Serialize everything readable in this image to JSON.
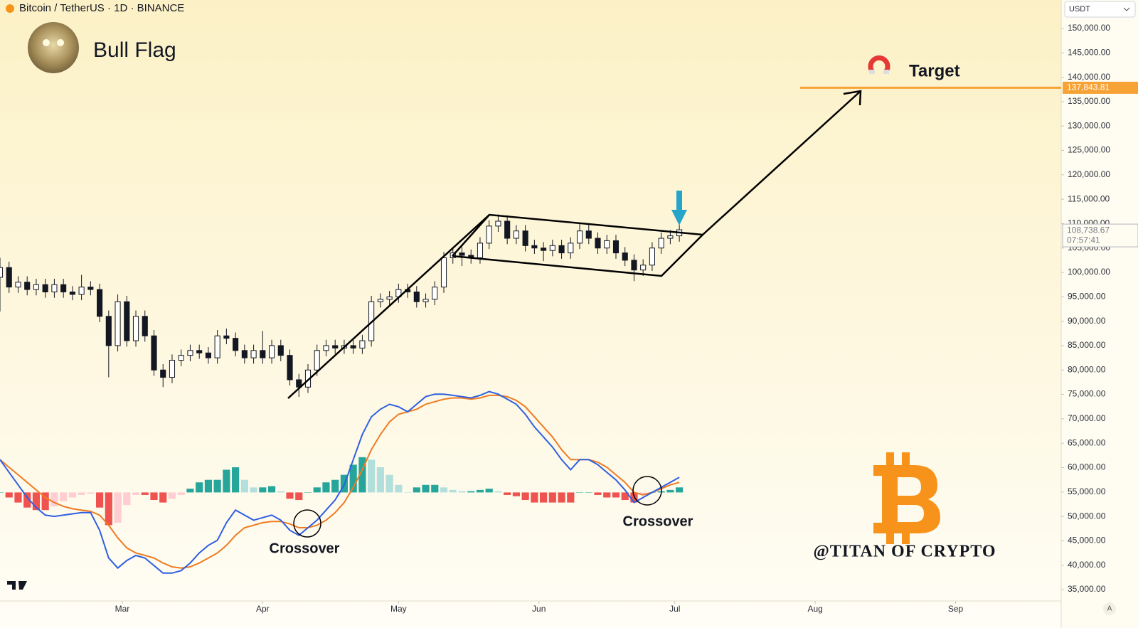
{
  "chart_data": {
    "type": "candlestick",
    "title": "Bitcoin / TetherUS · 1D · BINANCE",
    "pattern_label": "Bull Flag",
    "currency": "USDT",
    "scale_mode": "A",
    "x": [
      0,
      2,
      4,
      6,
      8,
      10,
      12,
      14,
      16,
      18,
      20,
      22,
      24,
      26,
      28,
      30,
      32,
      34,
      36,
      38,
      40,
      42,
      44,
      46,
      48,
      50,
      52,
      54,
      56,
      58,
      60,
      62,
      64,
      66,
      68,
      70,
      72,
      74,
      76,
      78,
      80,
      82,
      84,
      86,
      88,
      90,
      92,
      94,
      96,
      98,
      100,
      102,
      104,
      106,
      108,
      110,
      112,
      114,
      116,
      118,
      120,
      122,
      124,
      126,
      128,
      130,
      132,
      134,
      136,
      138,
      140,
      142,
      144,
      146,
      148,
      150
    ],
    "open": [
      99000,
      101000,
      97000,
      98000,
      96500,
      97500,
      96000,
      97500,
      96000,
      95500,
      97000,
      96500,
      91000,
      85000,
      94000,
      86000,
      91000,
      87000,
      80000,
      78500,
      82000,
      83000,
      84000,
      83500,
      82500,
      87000,
      86500,
      84000,
      82500,
      84000,
      82500,
      85000,
      83000,
      78000,
      76500,
      80000,
      84000,
      85000,
      84500,
      85000,
      84500,
      86000,
      94000,
      94500,
      95000,
      96500,
      96000,
      94000,
      94500,
      97000,
      103000,
      104000,
      103500,
      103000,
      106000,
      109500,
      110500,
      107000,
      108500,
      105500,
      105000,
      104500,
      105500,
      104000,
      106000,
      108500,
      107000,
      105000,
      106500,
      104000,
      102500,
      100500,
      101500,
      105000,
      107000,
      107500
    ],
    "high": [
      103000,
      102200,
      99200,
      99200,
      98700,
      98700,
      98700,
      98700,
      97200,
      99500,
      98200,
      97700,
      92200,
      95500,
      95200,
      92200,
      92200,
      88200,
      81200,
      83200,
      84200,
      85200,
      85200,
      84700,
      88200,
      88500,
      87700,
      85200,
      85200,
      88000,
      86200,
      86200,
      84200,
      79200,
      81200,
      85200,
      86200,
      86200,
      86200,
      86200,
      87200,
      95200,
      95700,
      96200,
      97700,
      97700,
      97200,
      95700,
      98200,
      104200,
      105200,
      105200,
      104700,
      107200,
      110700,
      111900,
      111700,
      109700,
      109700,
      106700,
      106200,
      106700,
      106700,
      107200,
      110200,
      110000,
      108200,
      107700,
      107700,
      105200,
      103700,
      102700,
      106200,
      108200,
      108700,
      109900
    ],
    "low": [
      92000,
      95800,
      95800,
      95300,
      95300,
      94800,
      94800,
      94800,
      94300,
      94300,
      95300,
      89800,
      78500,
      83800,
      84800,
      84800,
      85800,
      78800,
      76500,
      77300,
      80800,
      81800,
      82300,
      81300,
      81300,
      85300,
      82800,
      81300,
      81300,
      81300,
      81300,
      81800,
      76800,
      74500,
      75300,
      78800,
      82800,
      83300,
      83300,
      83300,
      83300,
      84800,
      92800,
      93300,
      93800,
      94800,
      92800,
      92800,
      93300,
      95800,
      101800,
      101300,
      101800,
      101800,
      104800,
      108300,
      105800,
      105800,
      104300,
      103800,
      102300,
      103300,
      102800,
      102800,
      104800,
      105800,
      103800,
      103800,
      102800,
      101300,
      98200,
      99300,
      100300,
      103800,
      105800,
      106300
    ],
    "close": [
      101000,
      97000,
      98000,
      96500,
      97500,
      96000,
      97500,
      96000,
      95500,
      97000,
      96500,
      91000,
      85000,
      94000,
      86000,
      91000,
      87000,
      80000,
      78500,
      82000,
      83000,
      84000,
      83500,
      82500,
      87000,
      86500,
      84000,
      82500,
      84000,
      82500,
      85000,
      83000,
      78000,
      76500,
      80000,
      84000,
      85000,
      84500,
      85000,
      84500,
      86000,
      94000,
      94500,
      95000,
      96500,
      96000,
      94000,
      94500,
      97000,
      103000,
      104000,
      103500,
      103000,
      106000,
      109500,
      110500,
      107000,
      108500,
      105500,
      105000,
      104500,
      105500,
      104000,
      106000,
      108500,
      107000,
      105000,
      106500,
      104000,
      102500,
      100500,
      101500,
      105000,
      107000,
      107500,
      108738.67
    ],
    "up_color": "#ffffff",
    "down_color": "#131722",
    "xlim": [
      0,
      234
    ],
    "xticks": [
      {
        "value": 27,
        "label": "Mar"
      },
      {
        "value": 58,
        "label": "Apr"
      },
      {
        "value": 88,
        "label": "May"
      },
      {
        "value": 119,
        "label": "Jun"
      },
      {
        "value": 149,
        "label": "Jul"
      },
      {
        "value": 180,
        "label": "Aug"
      },
      {
        "value": 211,
        "label": "Sep"
      }
    ],
    "ylim": [
      32960,
      155830
    ],
    "yticks": [
      {
        "value": 35000,
        "label": "35,000.00"
      },
      {
        "value": 40000,
        "label": "40,000.00"
      },
      {
        "value": 45000,
        "label": "45,000.00"
      },
      {
        "value": 50000,
        "label": "50,000.00"
      },
      {
        "value": 55000,
        "label": "55,000.00"
      },
      {
        "value": 60000,
        "label": "60,000.00"
      },
      {
        "value": 65000,
        "label": "65,000.00"
      },
      {
        "value": 70000,
        "label": "70,000.00"
      },
      {
        "value": 75000,
        "label": "75,000.00"
      },
      {
        "value": 80000,
        "label": "80,000.00"
      },
      {
        "value": 85000,
        "label": "85,000.00"
      },
      {
        "value": 90000,
        "label": "90,000.00"
      },
      {
        "value": 95000,
        "label": "95,000.00"
      },
      {
        "value": 100000,
        "label": "100,000.00"
      },
      {
        "value": 105000,
        "label": "105,000.00"
      },
      {
        "value": 110000,
        "label": "110,000.00"
      },
      {
        "value": 115000,
        "label": "115,000.00"
      },
      {
        "value": 120000,
        "label": "120,000.00"
      },
      {
        "value": 125000,
        "label": "125,000.00"
      },
      {
        "value": 130000,
        "label": "130,000.00"
      },
      {
        "value": 135000,
        "label": "135,000.00"
      },
      {
        "value": 140000,
        "label": "140,000.00"
      },
      {
        "value": 145000,
        "label": "145,000.00"
      },
      {
        "value": 150000,
        "label": "150,000.00"
      }
    ],
    "grid": false,
    "target": {
      "name": "Target",
      "value": 137843.81,
      "label": "137,843.81",
      "color": "#f7a234"
    },
    "last_price": {
      "value": 108738.67,
      "label": "108,738.67",
      "countdown": "07:57:41",
      "color": "#b2b5be"
    },
    "annotations": [
      "Crossover",
      "Crossover"
    ],
    "watermark": "@TITAN OF CRYPTO",
    "macd": {
      "ylim": [
        -3600,
        4300
      ],
      "macd": {
        "color": "#2f5fe0",
        "values": [
          1300,
          800,
          300,
          -200,
          -600,
          -900,
          -950,
          -900,
          -850,
          -800,
          -800,
          -1500,
          -2600,
          -3000,
          -2700,
          -2500,
          -2600,
          -2900,
          -3200,
          -3200,
          -3100,
          -2800,
          -2400,
          -2100,
          -1900,
          -1200,
          -700,
          -900,
          -1100,
          -1000,
          -900,
          -1100,
          -1500,
          -1700,
          -1400,
          -1100,
          -700,
          -300,
          300,
          1300,
          2300,
          3000,
          3300,
          3500,
          3400,
          3200,
          3500,
          3800,
          3900,
          3900,
          3850,
          3800,
          3750,
          3850,
          4000,
          3900,
          3700,
          3500,
          3100,
          2600,
          2200,
          1800,
          1300,
          900,
          1300,
          1300,
          1100,
          800,
          500,
          100,
          -400,
          -200,
          0,
          200,
          400,
          600
        ]
      },
      "signal": {
        "color": "#ef7b22",
        "values": [
          1300,
          1000,
          700,
          400,
          100,
          -200,
          -400,
          -550,
          -650,
          -700,
          -750,
          -900,
          -1300,
          -1800,
          -2200,
          -2400,
          -2500,
          -2600,
          -2800,
          -2950,
          -3000,
          -2950,
          -2800,
          -2600,
          -2400,
          -2100,
          -1700,
          -1400,
          -1300,
          -1200,
          -1150,
          -1150,
          -1250,
          -1400,
          -1400,
          -1300,
          -1100,
          -800,
          -400,
          200,
          900,
          1700,
          2300,
          2800,
          3100,
          3200,
          3300,
          3500,
          3600,
          3700,
          3750,
          3750,
          3700,
          3750,
          3850,
          3850,
          3800,
          3650,
          3400,
          3000,
          2600,
          2200,
          1700,
          1300,
          1300,
          1300,
          1200,
          1000,
          700,
          400,
          0,
          -100,
          0,
          150,
          300,
          400
        ]
      },
      "histogram": {
        "colors": [
          "#26a69a",
          "#b2dfdb",
          "#ffcdd2",
          "#ef5350"
        ],
        "values": [
          0,
          -200,
          -400,
          -600,
          -700,
          -700,
          -550,
          -350,
          -200,
          -100,
          -50,
          -600,
          -1300,
          -1200,
          -500,
          -100,
          -100,
          -300,
          -400,
          -250,
          -100,
          150,
          400,
          500,
          500,
          900,
          1000,
          500,
          200,
          200,
          250,
          50,
          -250,
          -300,
          0,
          200,
          400,
          500,
          700,
          1100,
          1400,
          1300,
          1000,
          700,
          300,
          0,
          200,
          300,
          300,
          200,
          100,
          50,
          50,
          100,
          150,
          50,
          -100,
          -150,
          -300,
          -400,
          -400,
          -400,
          -400,
          -400,
          0,
          0,
          -100,
          -200,
          -200,
          -300,
          -400,
          -100,
          0,
          50,
          100,
          200
        ]
      }
    }
  }
}
